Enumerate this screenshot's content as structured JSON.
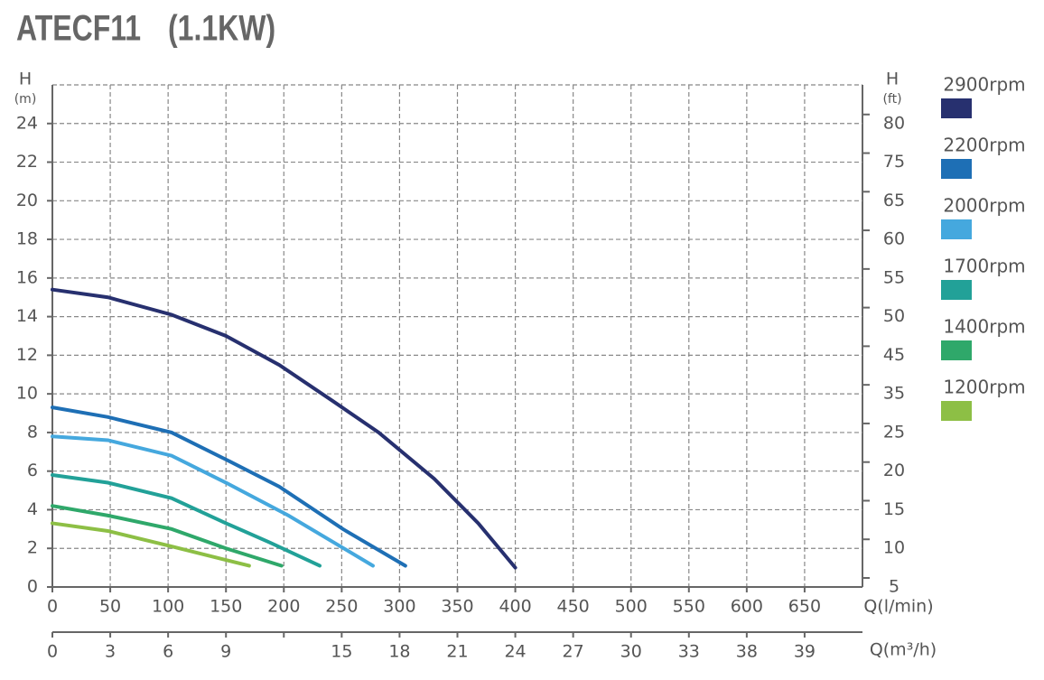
{
  "chart_data": {
    "type": "line",
    "title": "ATECF11",
    "subtitle": "(1.1KW)",
    "y_label": "H",
    "y_unit": "(m)",
    "y2_label": "H",
    "y2_unit": "(ft)",
    "x_label": "Q(l/min)",
    "x2_label": "Q(m³/h)",
    "xlim": [
      0,
      700
    ],
    "xticks": [
      0,
      50,
      100,
      150,
      200,
      250,
      300,
      350,
      400,
      450,
      500,
      550,
      600,
      650
    ],
    "ylim": [
      0,
      26
    ],
    "yticks": [
      0,
      2,
      4,
      6,
      8,
      10,
      12,
      14,
      16,
      18,
      20,
      22,
      24
    ],
    "y2ticks": [
      5,
      10,
      15,
      20,
      25,
      35,
      45,
      50,
      55,
      60,
      65,
      75,
      80
    ],
    "x2ticks": [
      0,
      3,
      6,
      9,
      null,
      15,
      18,
      21,
      24,
      27,
      30,
      33,
      38,
      39
    ],
    "grid": true,
    "series": [
      {
        "name": "2900rpm",
        "color": "#27306f",
        "x": [
          0,
          48,
          103,
          150,
          196,
          243,
          282,
          330,
          368,
          400
        ],
        "values": [
          15.4,
          15.0,
          14.1,
          13.0,
          11.5,
          9.6,
          8.0,
          5.6,
          3.3,
          1.0
        ]
      },
      {
        "name": "2200rpm",
        "color": "#1e6fb5",
        "x": [
          0,
          48,
          103,
          150,
          196,
          251,
          305
        ],
        "values": [
          9.3,
          8.8,
          8.0,
          6.6,
          5.2,
          3.0,
          1.1
        ]
      },
      {
        "name": "2000rpm",
        "color": "#45a8de",
        "x": [
          0,
          48,
          103,
          150,
          204,
          277
        ],
        "values": [
          7.8,
          7.6,
          6.8,
          5.4,
          3.7,
          1.1
        ]
      },
      {
        "name": "1700rpm",
        "color": "#22a198",
        "x": [
          0,
          48,
          103,
          150,
          188,
          231
        ],
        "values": [
          5.8,
          5.4,
          4.6,
          3.3,
          2.3,
          1.1
        ]
      },
      {
        "name": "1400rpm",
        "color": "#2fa86a",
        "x": [
          0,
          48,
          103,
          150,
          198
        ],
        "values": [
          4.2,
          3.7,
          3.0,
          2.0,
          1.1
        ]
      },
      {
        "name": "1200rpm",
        "color": "#8dbf45",
        "x": [
          0,
          48,
          103,
          170
        ],
        "values": [
          3.3,
          2.9,
          2.1,
          1.1
        ]
      }
    ]
  }
}
